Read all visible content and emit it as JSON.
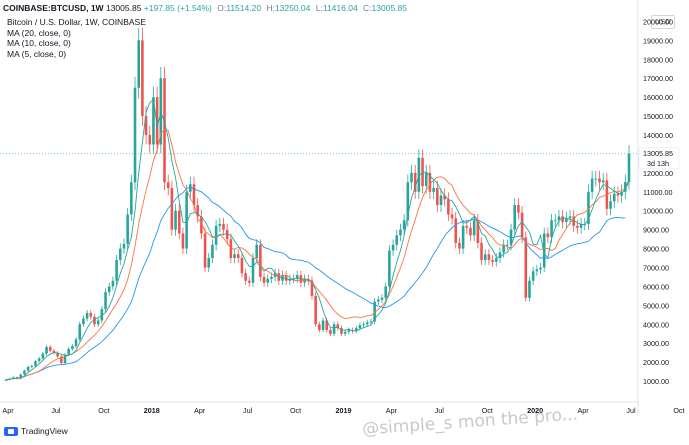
{
  "header": {
    "symbol": "COINBASE:BTCUSD, 1W",
    "last": "13005.85",
    "change": "+197.85 (+1.54%)",
    "o_label": "O:",
    "o_value": "11514.20",
    "h_label": "H:",
    "h_value": "13250.04",
    "l_label": "L:",
    "l_value": "11416.04",
    "c_label": "C:",
    "c_value": "13005.85"
  },
  "indicators": [
    "Bitcoin / U.S. Dollar, 1W, COINBASE",
    "MA (20, close, 0)",
    "MA (10, close, 0)",
    "MA (5, close, 0)"
  ],
  "currency_button": "USD",
  "footer": {
    "brand": "TradingView"
  },
  "watermark": "@simple_s mon the pro...",
  "chart_data": {
    "type": "candlestick",
    "title": "Bitcoin / U.S. Dollar, 1W, COINBASE",
    "ylim": [
      0,
      20500
    ],
    "y_ticks": [
      "1000.00",
      "2000.00",
      "3000.00",
      "4000.00",
      "5000.00",
      "6000.00",
      "7000.00",
      "8000.00",
      "9000.00",
      "10000.00",
      "11000.00",
      "12000.00",
      "13000.00",
      "14000.00",
      "15000.00",
      "16000.00",
      "17000.00",
      "18000.00",
      "19000.00",
      "20000.00"
    ],
    "x_ticks": [
      {
        "label": "Apr",
        "i": 0
      },
      {
        "label": "Jul",
        "i": 13
      },
      {
        "label": "Oct",
        "i": 26
      },
      {
        "label": "2018",
        "i": 39
      },
      {
        "label": "Apr",
        "i": 52
      },
      {
        "label": "Jul",
        "i": 65
      },
      {
        "label": "Oct",
        "i": 78
      },
      {
        "label": "2019",
        "i": 91
      },
      {
        "label": "Apr",
        "i": 104
      },
      {
        "label": "Jul",
        "i": 117
      },
      {
        "label": "Oct",
        "i": 130
      },
      {
        "label": "2020",
        "i": 143
      },
      {
        "label": "Apr",
        "i": 156
      },
      {
        "label": "Jul",
        "i": 169
      },
      {
        "label": "Oct",
        "i": 182
      }
    ],
    "last_price_label": "13005.85",
    "countdown_label": "3d 13h",
    "colors": {
      "up": "#26a69a",
      "down": "#ef5350",
      "ma20": "#2196f3",
      "ma10": "#ff7043",
      "ma5": "#26a69a",
      "last": "#26a69a"
    },
    "close": [
      1071,
      1130,
      1200,
      1130,
      1350,
      1550,
      1750,
      1800,
      2050,
      2200,
      2450,
      2800,
      2600,
      2500,
      2300,
      1950,
      2400,
      2700,
      2850,
      3200,
      4000,
      4300,
      4600,
      4400,
      4000,
      4200,
      4800,
      5700,
      6000,
      6300,
      7400,
      8000,
      8250,
      9800,
      11500,
      16500,
      19000,
      15000,
      14000,
      13500,
      16000,
      13500,
      17000,
      11500,
      11200,
      9000,
      10000,
      8800,
      8000,
      11000,
      11400,
      10300,
      9700,
      8800,
      7000,
      7500,
      8200,
      9200,
      9300,
      9000,
      8500,
      7500,
      7700,
      7500,
      6700,
      6300,
      6200,
      7500,
      8200,
      6500,
      6200,
      6400,
      6500,
      6700,
      6300,
      6600,
      6300,
      6400,
      6400,
      6600,
      6200,
      6400,
      6300,
      5500,
      4000,
      3700,
      4200,
      3700,
      3500,
      4000,
      3800,
      3500,
      3600,
      3700,
      3650,
      3800,
      3950,
      4000,
      4100,
      4150,
      5200,
      5300,
      5400,
      6000,
      7900,
      8200,
      8700,
      9000,
      9500,
      11500,
      12000,
      11000,
      12800,
      11300,
      12000,
      11000,
      11200,
      10300,
      10800,
      10600,
      9800,
      9600,
      8300,
      8000,
      9200,
      9100,
      8700,
      9500,
      8300,
      7400,
      7700,
      7400,
      7300,
      7500,
      7800,
      8200,
      8200,
      9000,
      10300,
      9900,
      8600,
      5400,
      6300,
      6800,
      6900,
      7000,
      8800,
      8600,
      9500,
      9500,
      9700,
      9400,
      9600,
      9700,
      9200,
      9100,
      9300,
      9300,
      11000,
      11700,
      11700,
      11500,
      11600,
      10100,
      10500,
      10900,
      10800,
      11000,
      11514,
      13006
    ],
    "ma20": [
      1071,
      1100,
      1133,
      1133,
      1176,
      1238,
      1311,
      1372,
      1447,
      1522,
      1606,
      1706,
      1775,
      1826,
      1858,
      1864,
      1887,
      1923,
      1966,
      2023,
      2170,
      2329,
      2499,
      2662,
      2795,
      2927,
      3080,
      3275,
      3478,
      3683,
      3953,
      4218,
      4488,
      4818,
      5193,
      5773,
      6423,
      6888,
      7346,
      7761,
      8368,
      8878,
      9484,
      9818,
      10123,
      10361,
      10621,
      10826,
      10951,
      11186,
      11236,
      11151,
      11074,
      10999,
      10824,
      10674,
      10434,
      10339,
      10204,
      10029,
      9854,
      9714,
      9434,
      9309,
      9094,
      8759,
      8534,
      8469,
      8434,
      8309,
      8059,
      8004,
      7914,
      7839,
      7819,
      7774,
      7654,
      7464,
      7419,
      7399,
      7384,
      7329,
      7284,
      7149,
      6984,
      6869,
      6724,
      6549,
      6414,
      6289,
      6169,
      6029,
      5899,
      5789,
      5692,
      5579,
      5466,
      5355,
      5243,
      5120,
      5044,
      4959,
      4906,
      4873,
      4963,
      5073,
      5198,
      5333,
      5483,
      5756,
      5975,
      6208,
      6453,
      6715,
      6992,
      7357,
      7711,
      8014,
      8349,
      8671,
      8898,
      9113,
      9258,
      9358,
      9423,
      9468,
      9493,
      9568,
      9508,
      9418,
      9303,
      9173,
      9090,
      8998,
      8888,
      8778,
      8659,
      8569,
      8607,
      8660,
      8655,
      8302,
      8035,
      7845,
      7672,
      7484,
      7538,
      7477,
      7563,
      7702,
      7802,
      7910,
      8025,
      8135,
      8207,
      8252,
      8280,
      8335,
      8380,
      8582,
      8745,
      8873,
      9173,
      9473,
      9583,
      9633,
      9650,
      9620,
      9620
    ],
    "ma10": [
      1071,
      1100,
      1133,
      1133,
      1176,
      1238,
      1311,
      1372,
      1447,
      1523,
      1661,
      1803,
      1943,
      2080,
      2175,
      2215,
      2280,
      2370,
      2450,
      2550,
      2705,
      2855,
      3055,
      3245,
      3415,
      3640,
      3880,
      4180,
      4495,
      4805,
      5085,
      5455,
      5820,
      6360,
      7120,
      8135,
      9295,
      10225,
      11085,
      11805,
      12665,
      13215,
      14090,
      14260,
      14230,
      13480,
      12580,
      11960,
      11360,
      11110,
      10650,
      10330,
      9600,
      9330,
      8910,
      8760,
      8580,
      8620,
      8750,
      8550,
      8300,
      8020,
      7970,
      8060,
      8030,
      7910,
      7710,
      7540,
      7430,
      7150,
      6920,
      6810,
      6670,
      6590,
      6550,
      6580,
      6590,
      6490,
      6310,
      6320,
      6320,
      6320,
      6300,
      6210,
      5980,
      5730,
      5520,
      5260,
      4990,
      4730,
      4530,
      4390,
      4310,
      4330,
      4380,
      4390,
      4360,
      4390,
      4450,
      4470,
      4610,
      4790,
      4970,
      5200,
      5565,
      6005,
      6480,
      6980,
      7520,
      8255,
      8935,
      9525,
      10165,
      10695,
      11105,
      11385,
      11635,
      11765,
      11795,
      11705,
      11485,
      11345,
      10895,
      10565,
      10285,
      10095,
      9845,
      9765,
      9515,
      9195,
      8985,
      8765,
      8575,
      8325,
      8185,
      8195,
      8095,
      8005,
      8205,
      8455,
      8545,
      8345,
      8225,
      8155,
      8065,
      7945,
      8005,
      8005,
      7905,
      7995,
      8435,
      8735,
      9065,
      9355,
      9575,
      9785,
      9835,
      9915,
      10085,
      10305,
      10465,
      10705,
      10775,
      10855,
      10955,
      11025,
      10980,
      11075,
      11155,
      11505
    ],
    "ma5": [
      1071,
      1100,
      1133,
      1133,
      1176,
      1272,
      1446,
      1596,
      1740,
      1910,
      2090,
      2300,
      2420,
      2510,
      2470,
      2420,
      2350,
      2370,
      2440,
      2620,
      3030,
      3410,
      3790,
      4100,
      4240,
      4360,
      4460,
      4620,
      4940,
      5400,
      6040,
      6680,
      7190,
      7950,
      8590,
      9990,
      12010,
      13610,
      15200,
      15700,
      15900,
      14400,
      15200,
      14700,
      13840,
      12640,
      11740,
      10500,
      9400,
      9360,
      9840,
      9900,
      9860,
      9640,
      9440,
      9060,
      8640,
      8540,
      8740,
      8760,
      8780,
      8700,
      8400,
      8140,
      7780,
      7340,
      7060,
      7040,
      7300,
      7040,
      6800,
      6960,
      6960,
      6700,
      6460,
      6480,
      6400,
      6360,
      6400,
      6460,
      6380,
      6400,
      6360,
      6280,
      5820,
      5380,
      4740,
      4200,
      3820,
      3820,
      3840,
      3700,
      3680,
      3760,
      3650,
      3650,
      3740,
      3820,
      3890,
      3960,
      4280,
      4510,
      4750,
      5130,
      5760,
      6560,
      7280,
      7900,
      8660,
      9780,
      10660,
      11240,
      11860,
      12000,
      12060,
      11820,
      11660,
      11440,
      11080,
      10800,
      10600,
      10520,
      10220,
      9820,
      9360,
      9360,
      9520,
      9700,
      9360,
      8800,
      8660,
      8220,
      7940,
      7560,
      7540,
      7720,
      7800,
      8140,
      8700,
      9200,
      9420,
      9140,
      8880,
      8220,
      8200,
      8700,
      7700,
      7540,
      8540,
      9100,
      9480,
      9640,
      9600,
      9540,
      9480,
      9360,
      9280,
      9260,
      9560,
      10060,
      10600,
      11040,
      11380,
      11320,
      11180,
      11040,
      10920,
      10900,
      11152,
      11640
    ]
  }
}
